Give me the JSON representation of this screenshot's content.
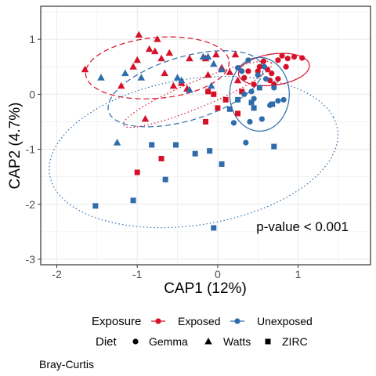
{
  "chart_data": {
    "type": "scatter",
    "xlabel": "CAP1 (12%)",
    "ylabel": "CAP2 (4.7%)",
    "xlim": [
      -2.2,
      1.9
    ],
    "ylim": [
      -3.1,
      1.6
    ],
    "xticks": [
      -2,
      -1,
      0,
      1
    ],
    "yticks": [
      1,
      0,
      -1,
      -2,
      -3
    ],
    "xtick_labels": [
      "-2",
      "-1",
      "0",
      "1"
    ],
    "ytick_labels": [
      "1",
      "0",
      "-1",
      "-2",
      "-3"
    ],
    "grid": true,
    "annotation": {
      "text": "p-value < 0.001",
      "x": 0.5,
      "y": -2.4
    },
    "caption": "Bray-Curtis",
    "colors": {
      "Exposed": "#d7102a",
      "Unexposed": "#2e6cab"
    },
    "legend": {
      "position": "bottom",
      "exposure_title": "Exposure",
      "exposure_items": [
        "Exposed",
        "Unexposed"
      ],
      "diet_title": "Diet",
      "diet_items": [
        "Gemma",
        "Watts",
        "ZIRC"
      ]
    },
    "series": [
      {
        "exposure": "Exposed",
        "diet": "Gemma",
        "shape": "circle",
        "points": [
          [
            0.5,
            0.42
          ],
          [
            0.52,
            0.5
          ],
          [
            0.57,
            0.6
          ],
          [
            0.62,
            0.45
          ],
          [
            0.67,
            0.38
          ],
          [
            0.75,
            0.62
          ],
          [
            0.8,
            0.7
          ],
          [
            0.85,
            0.5
          ],
          [
            0.87,
            0.65
          ],
          [
            0.95,
            0.68
          ],
          [
            1.05,
            0.66
          ],
          [
            0.75,
            0.28
          ],
          [
            0.65,
            0.25
          ],
          [
            0.7,
            0.18
          ],
          [
            0.45,
            0.18
          ],
          [
            0.38,
            0.42
          ],
          [
            0.33,
            0.3
          ]
        ]
      },
      {
        "exposure": "Exposed",
        "diet": "Watts",
        "shape": "triangle",
        "points": [
          [
            -1.65,
            0.45
          ],
          [
            -1.05,
            0.5
          ],
          [
            -1.0,
            0.62
          ],
          [
            -0.98,
            1.08
          ],
          [
            -0.85,
            0.82
          ],
          [
            -0.78,
            0.78
          ],
          [
            -0.7,
            0.65
          ],
          [
            -0.66,
            0.38
          ],
          [
            -0.6,
            0.75
          ],
          [
            -0.55,
            0.15
          ],
          [
            -0.45,
            0.2
          ],
          [
            -0.35,
            0.65
          ],
          [
            -0.15,
            0.65
          ],
          [
            -0.12,
            0.35
          ],
          [
            -0.02,
            0.72
          ],
          [
            0.05,
            0.48
          ],
          [
            0.15,
            0.4
          ],
          [
            0.25,
            0.25
          ],
          [
            0.22,
            0.72
          ],
          [
            -0.38,
            0.1
          ],
          [
            -0.9,
            -0.45
          ],
          [
            -1.2,
            0.15
          ],
          [
            -0.75,
            1.0
          ]
        ]
      },
      {
        "exposure": "Exposed",
        "diet": "ZIRC",
        "shape": "square",
        "points": [
          [
            -1.0,
            -1.42
          ],
          [
            -0.7,
            -1.17
          ],
          [
            -0.15,
            -0.5
          ],
          [
            -0.05,
            0.0
          ],
          [
            0.0,
            -0.25
          ],
          [
            0.1,
            -0.1
          ],
          [
            0.3,
            0.05
          ],
          [
            0.25,
            -0.35
          ],
          [
            -0.12,
            0.05
          ]
        ]
      },
      {
        "exposure": "Unexposed",
        "diet": "Gemma",
        "shape": "circle",
        "points": [
          [
            0.25,
            0.48
          ],
          [
            0.38,
            0.62
          ],
          [
            0.3,
            0.42
          ],
          [
            0.33,
            0.0
          ],
          [
            0.42,
            0.05
          ],
          [
            0.45,
            -0.08
          ],
          [
            0.5,
            0.35
          ],
          [
            0.58,
            0.5
          ],
          [
            0.6,
            0.28
          ],
          [
            0.7,
            0.12
          ],
          [
            0.75,
            -0.12
          ],
          [
            0.82,
            -0.1
          ],
          [
            0.65,
            -0.2
          ],
          [
            0.4,
            -0.5
          ],
          [
            0.55,
            -0.45
          ],
          [
            0.2,
            -0.52
          ],
          [
            0.35,
            -0.88
          ]
        ]
      },
      {
        "exposure": "Unexposed",
        "diet": "Watts",
        "shape": "triangle",
        "points": [
          [
            -1.45,
            0.3
          ],
          [
            -1.25,
            -0.88
          ],
          [
            -1.15,
            0.38
          ],
          [
            -0.95,
            0.3
          ],
          [
            -0.5,
            0.3
          ],
          [
            -0.45,
            0.25
          ],
          [
            -0.35,
            0.08
          ],
          [
            -0.18,
            0.68
          ],
          [
            -0.12,
            0.68
          ],
          [
            -0.08,
            0.15
          ],
          [
            -0.05,
            0.55
          ],
          [
            0.05,
            0.45
          ]
        ]
      },
      {
        "exposure": "Unexposed",
        "diet": "ZIRC",
        "shape": "square",
        "points": [
          [
            -1.52,
            -2.03
          ],
          [
            -1.05,
            -1.93
          ],
          [
            -0.82,
            -0.92
          ],
          [
            -0.65,
            -1.55
          ],
          [
            -0.52,
            -0.92
          ],
          [
            -0.28,
            -1.08
          ],
          [
            -0.1,
            -1.03
          ],
          [
            -0.05,
            -2.43
          ],
          [
            0.05,
            -1.27
          ],
          [
            0.15,
            -0.27
          ],
          [
            0.25,
            -0.1
          ],
          [
            0.42,
            -0.15
          ],
          [
            0.52,
            0.12
          ],
          [
            0.68,
            -0.18
          ],
          [
            0.7,
            -0.95
          ],
          [
            0.45,
            -0.25
          ]
        ]
      }
    ],
    "ellipses": [
      {
        "exposure": "Exposed",
        "diet": "Watts",
        "style": "dashed",
        "cx": -0.75,
        "cy": 0.48,
        "rx": 0.9,
        "ry": 0.55,
        "angle_deg": 10
      },
      {
        "exposure": "Unexposed",
        "diet": "Watts",
        "style": "dashed",
        "cx": -0.4,
        "cy": 0.1,
        "rx": 1.05,
        "ry": 0.55,
        "angle_deg": 28
      },
      {
        "exposure": "Exposed",
        "diet": "ZIRC",
        "style": "dotted",
        "cx": -0.25,
        "cy": 0.0,
        "rx": 1.08,
        "ry": 0.22,
        "angle_deg": 32
      },
      {
        "exposure": "Exposed",
        "diet": "Gemma",
        "style": "solid",
        "cx": 0.7,
        "cy": 0.45,
        "rx": 0.45,
        "ry": 0.28,
        "angle_deg": 15
      },
      {
        "exposure": "Unexposed",
        "diet": "Gemma",
        "style": "solid",
        "cx": 0.52,
        "cy": 0.0,
        "rx": 0.37,
        "ry": 0.67,
        "angle_deg": 0
      },
      {
        "exposure": "Unexposed",
        "diet": "ZIRC",
        "style": "dotted",
        "cx": -0.3,
        "cy": -1.05,
        "rx": 1.85,
        "ry": 1.3,
        "angle_deg": 20
      }
    ]
  }
}
